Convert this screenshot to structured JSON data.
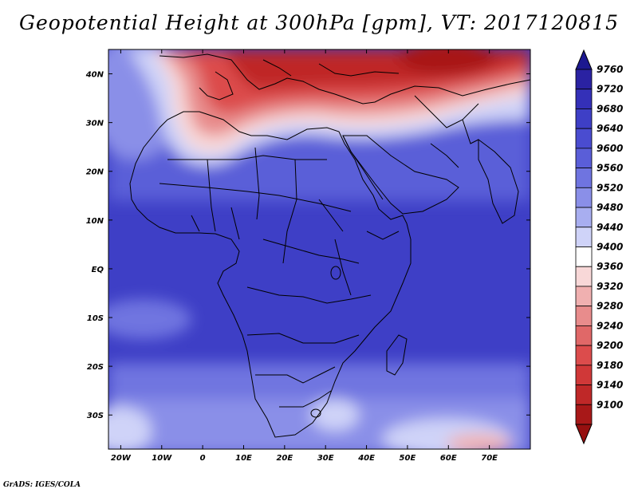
{
  "title": "Geopotential Height at 300hPa [gpm], VT: 2017120815",
  "credit": "GrADS: IGES/COLA",
  "map": {
    "lon_range": [
      -23,
      80
    ],
    "lat_range": [
      -37,
      45
    ],
    "x_ticks": [
      {
        "lon": -20,
        "label": "20W"
      },
      {
        "lon": -10,
        "label": "10W"
      },
      {
        "lon": 0,
        "label": "0"
      },
      {
        "lon": 10,
        "label": "10E"
      },
      {
        "lon": 20,
        "label": "20E"
      },
      {
        "lon": 30,
        "label": "30E"
      },
      {
        "lon": 40,
        "label": "40E"
      },
      {
        "lon": 50,
        "label": "50E"
      },
      {
        "lon": 60,
        "label": "60E"
      },
      {
        "lon": 70,
        "label": "70E"
      }
    ],
    "y_ticks": [
      {
        "lat": 40,
        "label": "40N"
      },
      {
        "lat": 30,
        "label": "30N"
      },
      {
        "lat": 20,
        "label": "20N"
      },
      {
        "lat": 10,
        "label": "10N"
      },
      {
        "lat": 0,
        "label": "EQ"
      },
      {
        "lat": -10,
        "label": "10S"
      },
      {
        "lat": -20,
        "label": "20S"
      },
      {
        "lat": -30,
        "label": "30S"
      }
    ]
  },
  "colorbar": {
    "levels": [
      "9760",
      "9720",
      "9680",
      "9640",
      "9600",
      "9560",
      "9520",
      "9480",
      "9440",
      "9400",
      "9360",
      "9320",
      "9280",
      "9240",
      "9200",
      "9180",
      "9140",
      "9100"
    ],
    "colors": [
      "#2a22a2",
      "#3430b8",
      "#3e3fc6",
      "#4a4cd0",
      "#5a5ed8",
      "#6f74e0",
      "#8a8fe8",
      "#a8aef0",
      "#cfd3f8",
      "#ffffff",
      "#f8d8d8",
      "#f0b0b0",
      "#e88c8c",
      "#e06868",
      "#dc4c4c",
      "#d03838",
      "#bf2828",
      "#a81818"
    ],
    "top_color": "#1c1890",
    "bottom_color": "#961010"
  }
}
